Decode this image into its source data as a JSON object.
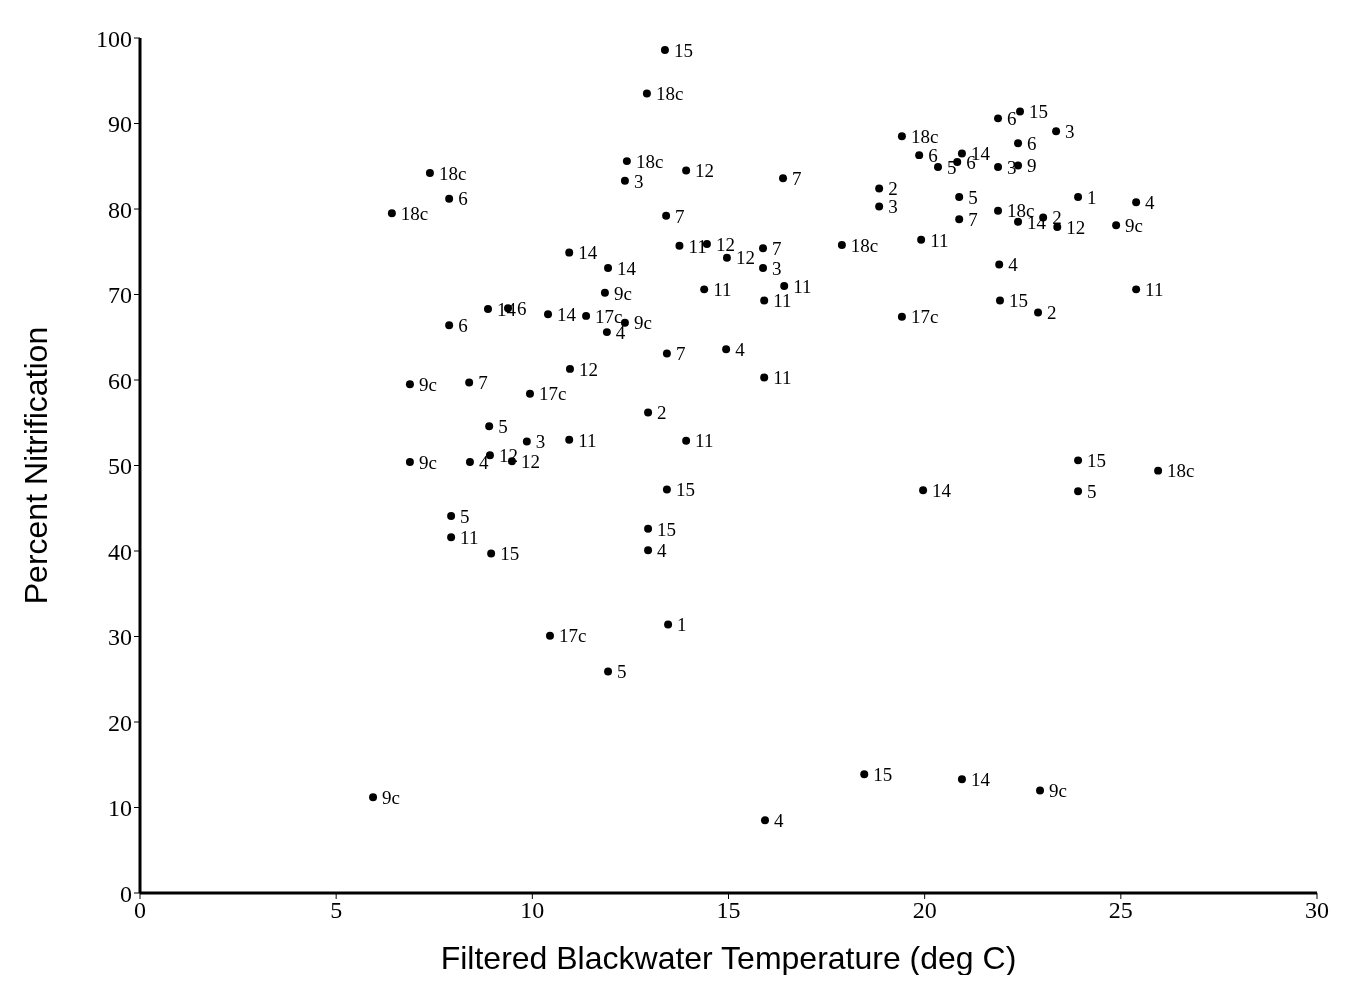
{
  "chart_data": {
    "type": "scatter",
    "xlabel": "Filtered Blackwater Temperature (deg C)",
    "ylabel": "Percent Nitrification",
    "xlim": [
      0,
      30
    ],
    "xticks": [
      0,
      5,
      10,
      15,
      20,
      25,
      30
    ],
    "ylim": [
      0,
      100
    ],
    "yticks": [
      0,
      10,
      20,
      30,
      40,
      50,
      60,
      70,
      80,
      90,
      100
    ],
    "grid": false,
    "marker": "circle",
    "series": [
      {
        "name": "15",
        "color": "#000000",
        "x": [
          13.38,
          13.43,
          8.95,
          12.95,
          18.46,
          23.91,
          21.92,
          22.43
        ],
        "values": [
          98.6,
          47.2,
          39.7,
          42.6,
          13.9,
          50.6,
          69.3,
          91.4
        ]
      },
      {
        "name": "18c",
        "color": "#000000",
        "x": [
          12.92,
          7.39,
          6.42,
          12.41,
          25.95,
          17.89,
          19.42,
          21.87
        ],
        "values": [
          93.5,
          84.2,
          79.5,
          85.6,
          49.4,
          75.8,
          88.5,
          79.8
        ]
      },
      {
        "name": "6",
        "color": "#000000",
        "x": [
          7.88,
          9.38,
          7.88,
          19.86,
          20.83,
          21.87,
          22.38
        ],
        "values": [
          81.2,
          68.4,
          66.4,
          86.3,
          85.5,
          90.6,
          87.7
        ]
      },
      {
        "name": "3",
        "color": "#000000",
        "x": [
          12.36,
          15.88,
          9.86,
          18.84,
          23.35,
          21.87
        ],
        "values": [
          83.3,
          73.1,
          52.8,
          80.3,
          89.1,
          84.9
        ]
      },
      {
        "name": "12",
        "color": "#000000",
        "x": [
          14.45,
          14.96,
          10.96,
          8.92,
          9.48,
          13.92,
          23.38
        ],
        "values": [
          75.9,
          74.3,
          61.3,
          51.2,
          50.5,
          84.5,
          77.9
        ]
      },
      {
        "name": "7",
        "color": "#000000",
        "x": [
          16.39,
          13.41,
          15.88,
          13.43,
          8.39,
          20.88
        ],
        "values": [
          83.6,
          79.2,
          75.4,
          63.1,
          59.7,
          78.8
        ]
      },
      {
        "name": "14",
        "color": "#000000",
        "x": [
          10.94,
          11.93,
          8.87,
          10.4,
          20.95,
          19.96,
          20.95,
          22.38
        ],
        "values": [
          74.9,
          73.1,
          68.3,
          67.7,
          13.3,
          47.1,
          86.5,
          78.5
        ]
      },
      {
        "name": "11",
        "color": "#000000",
        "x": [
          13.75,
          14.38,
          16.42,
          15.91,
          15.91,
          10.94,
          13.92,
          7.93,
          25.39,
          19.91
        ],
        "values": [
          75.7,
          70.6,
          71.0,
          69.3,
          60.3,
          53.0,
          52.9,
          41.6,
          70.6,
          76.4
        ]
      },
      {
        "name": "9c",
        "color": "#000000",
        "x": [
          11.85,
          12.36,
          6.88,
          6.88,
          5.94,
          22.94,
          24.88
        ],
        "values": [
          70.2,
          66.7,
          59.5,
          50.4,
          11.2,
          12.0,
          78.1
        ]
      },
      {
        "name": "17c",
        "color": "#000000",
        "x": [
          11.37,
          9.94,
          10.45,
          19.42
        ],
        "values": [
          67.5,
          58.4,
          30.1,
          67.4
        ]
      },
      {
        "name": "4",
        "color": "#000000",
        "x": [
          11.9,
          14.94,
          8.41,
          12.95,
          15.93,
          21.9,
          25.39
        ],
        "values": [
          65.6,
          63.6,
          50.4,
          40.1,
          8.5,
          73.5,
          80.8
        ]
      },
      {
        "name": "2",
        "color": "#000000",
        "x": [
          12.95,
          22.89,
          18.84,
          23.02
        ],
        "values": [
          56.2,
          67.9,
          82.4,
          79.0
        ]
      },
      {
        "name": "5",
        "color": "#000000",
        "x": [
          8.9,
          7.93,
          11.93,
          23.91,
          20.34,
          20.88
        ],
        "values": [
          54.6,
          44.1,
          25.9,
          47.0,
          84.9,
          81.4
        ]
      },
      {
        "name": "1",
        "color": "#000000",
        "x": [
          13.46,
          23.91
        ],
        "values": [
          31.4,
          81.4
        ]
      },
      {
        "name": "9",
        "color": "#000000",
        "x": [
          22.38
        ],
        "values": [
          85.1
        ]
      }
    ]
  }
}
